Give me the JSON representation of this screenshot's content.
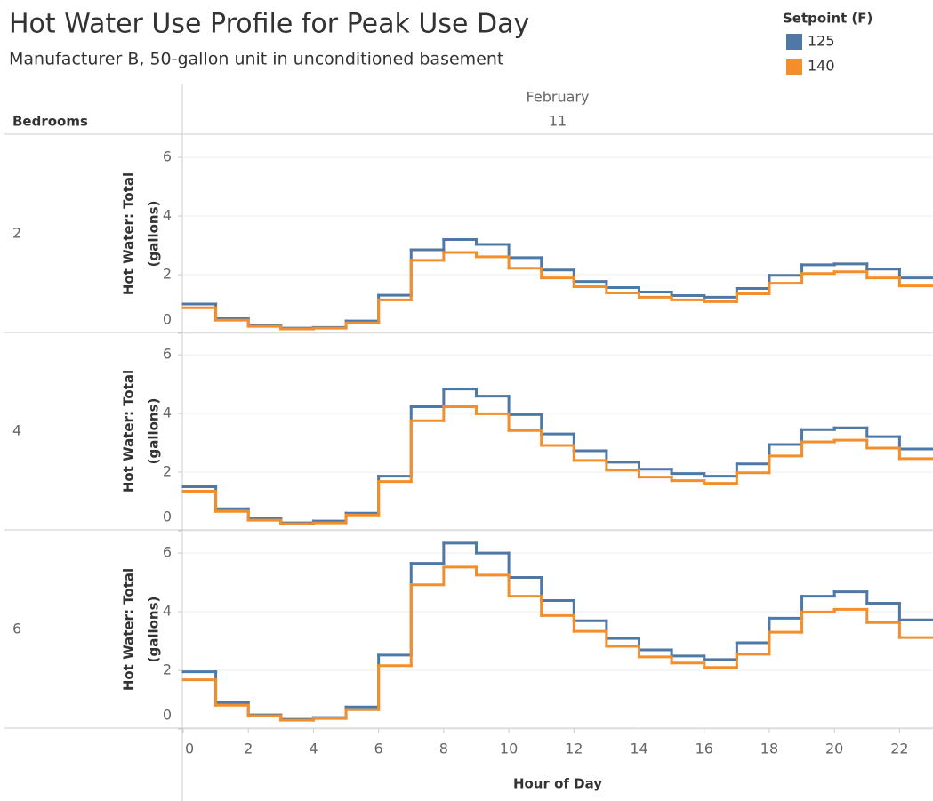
{
  "header": {
    "title": "Hot Water Use Profile for Peak Use Day",
    "subtitle": "Manufacturer B, 50-gallon unit in unconditioned basement",
    "legend_title": "Setpoint (F)",
    "row_header": "Bedrooms",
    "column_header": [
      "February",
      "11"
    ]
  },
  "chart_data": [
    {
      "type": "step",
      "row_label": "2",
      "ylabel": [
        "Hot Water: Total",
        "(gallons)"
      ],
      "x": [
        0,
        1,
        2,
        3,
        4,
        5,
        6,
        7,
        8,
        9,
        10,
        11,
        12,
        13,
        14,
        15,
        16,
        17,
        18,
        19,
        20,
        21,
        22
      ],
      "xlim": [
        0,
        23
      ],
      "ylim": [
        0,
        6.7
      ],
      "yticks": [
        0,
        2,
        4,
        6
      ],
      "grid": true,
      "series": [
        {
          "name": "125",
          "color": "#4e79a7",
          "values": [
            1.0,
            0.5,
            0.27,
            0.18,
            0.2,
            0.42,
            1.3,
            2.85,
            3.2,
            3.03,
            2.58,
            2.16,
            1.77,
            1.56,
            1.41,
            1.29,
            1.23,
            1.53,
            1.98,
            2.34,
            2.37,
            2.19,
            1.89
          ]
        },
        {
          "name": "140",
          "color": "#f28e2b",
          "values": [
            0.87,
            0.45,
            0.24,
            0.15,
            0.18,
            0.36,
            1.14,
            2.49,
            2.76,
            2.61,
            2.22,
            1.89,
            1.59,
            1.38,
            1.23,
            1.14,
            1.08,
            1.35,
            1.71,
            2.04,
            2.1,
            1.89,
            1.62
          ]
        }
      ]
    },
    {
      "type": "step",
      "row_label": "4",
      "ylabel": [
        "Hot Water: Total",
        "(gallons)"
      ],
      "x": [
        0,
        1,
        2,
        3,
        4,
        5,
        6,
        7,
        8,
        9,
        10,
        11,
        12,
        13,
        14,
        15,
        16,
        17,
        18,
        19,
        20,
        21,
        22
      ],
      "xlim": [
        0,
        23
      ],
      "ylim": [
        0,
        6.7
      ],
      "yticks": [
        0,
        2,
        4,
        6
      ],
      "grid": true,
      "series": [
        {
          "name": "125",
          "color": "#4e79a7",
          "values": [
            1.5,
            0.75,
            0.42,
            0.27,
            0.33,
            0.6,
            1.86,
            4.23,
            4.83,
            4.59,
            3.96,
            3.3,
            2.73,
            2.34,
            2.1,
            1.95,
            1.86,
            2.28,
            2.94,
            3.45,
            3.51,
            3.21,
            2.79
          ]
        },
        {
          "name": "140",
          "color": "#f28e2b",
          "values": [
            1.35,
            0.66,
            0.36,
            0.24,
            0.27,
            0.54,
            1.68,
            3.75,
            4.23,
            3.99,
            3.42,
            2.91,
            2.4,
            2.07,
            1.83,
            1.71,
            1.62,
            1.98,
            2.55,
            3.03,
            3.09,
            2.82,
            2.46
          ]
        }
      ]
    },
    {
      "type": "step",
      "row_label": "6",
      "ylabel": [
        "Hot Water: Total",
        "(gallons)"
      ],
      "x": [
        0,
        1,
        2,
        3,
        4,
        5,
        6,
        7,
        8,
        9,
        10,
        11,
        12,
        13,
        14,
        15,
        16,
        17,
        18,
        19,
        20,
        21,
        22
      ],
      "xlim": [
        0,
        23
      ],
      "ylim": [
        0,
        6.7
      ],
      "yticks": [
        0,
        2,
        4,
        6
      ],
      "grid": true,
      "xlabel": "Hour of Day",
      "xticks": [
        0,
        2,
        4,
        6,
        8,
        10,
        12,
        14,
        16,
        18,
        20,
        22
      ],
      "series": [
        {
          "name": "125",
          "color": "#4e79a7",
          "values": [
            1.95,
            0.9,
            0.48,
            0.33,
            0.39,
            0.75,
            2.52,
            5.65,
            6.34,
            6.0,
            5.17,
            4.38,
            3.69,
            3.09,
            2.7,
            2.49,
            2.37,
            2.94,
            3.78,
            4.53,
            4.68,
            4.29,
            3.72
          ]
        },
        {
          "name": "140",
          "color": "#f28e2b",
          "values": [
            1.68,
            0.81,
            0.45,
            0.3,
            0.36,
            0.66,
            2.16,
            4.92,
            5.52,
            5.25,
            4.53,
            3.87,
            3.33,
            2.82,
            2.46,
            2.25,
            2.1,
            2.55,
            3.3,
            3.99,
            4.08,
            3.63,
            3.12
          ]
        }
      ]
    }
  ]
}
